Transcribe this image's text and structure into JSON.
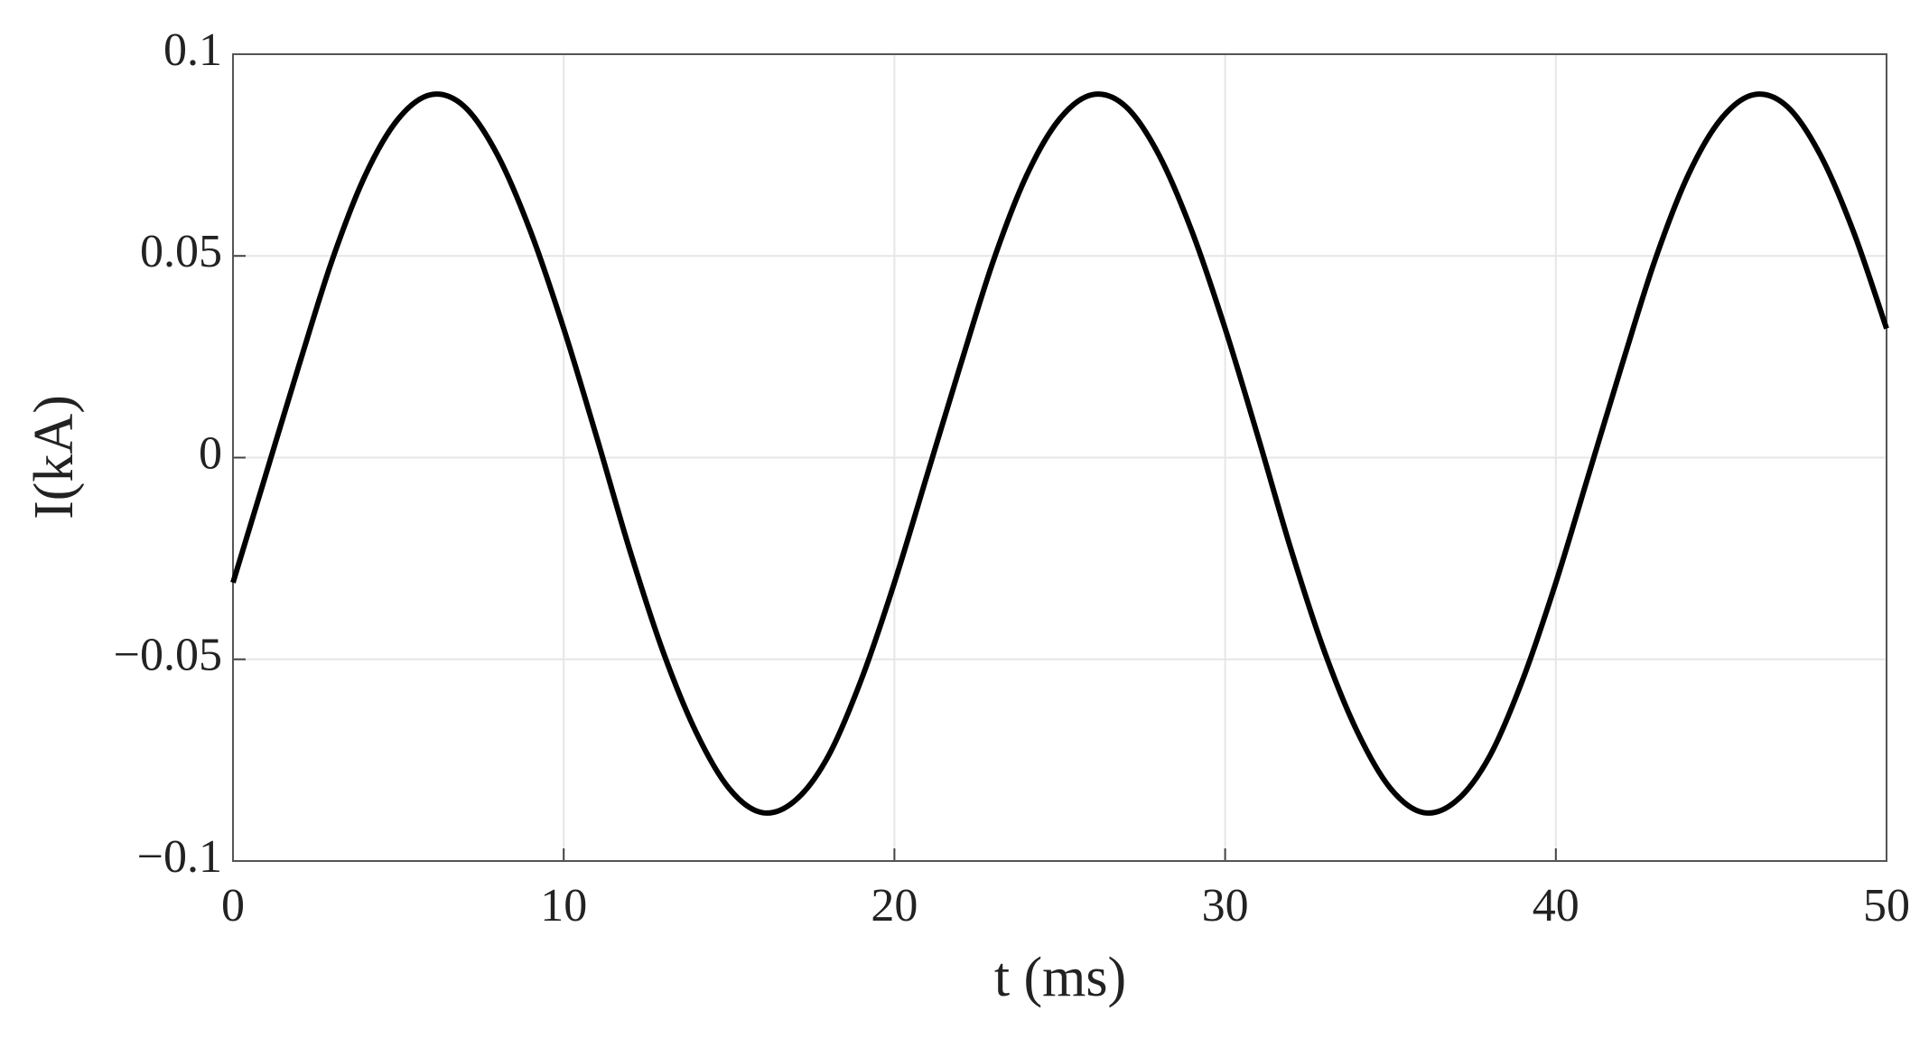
{
  "chart_data": {
    "type": "line",
    "xlabel": "t (ms)",
    "ylabel": "I(kA)",
    "x": [
      0,
      1,
      2,
      3,
      4,
      5,
      6,
      7,
      8,
      9,
      10,
      11,
      12,
      13,
      14,
      15,
      16,
      17,
      18,
      19,
      20,
      21,
      22,
      23,
      24,
      25,
      26,
      27,
      28,
      29,
      30,
      31,
      32,
      33,
      34,
      35,
      36,
      37,
      38,
      39,
      40,
      41,
      42,
      43,
      44,
      45,
      46,
      47,
      48,
      49,
      50
    ],
    "series": [
      {
        "name": "I",
        "color": "#000000",
        "values": [
          -0.031,
          -0.004,
          0.023,
          0.049,
          0.07,
          0.084,
          0.09,
          0.087,
          0.075,
          0.056,
          0.032,
          0.005,
          -0.023,
          -0.048,
          -0.068,
          -0.082,
          -0.088,
          -0.085,
          -0.074,
          -0.055,
          -0.031,
          -0.004,
          0.023,
          0.049,
          0.07,
          0.084,
          0.09,
          0.087,
          0.075,
          0.056,
          0.032,
          0.005,
          -0.023,
          -0.048,
          -0.068,
          -0.082,
          -0.088,
          -0.085,
          -0.074,
          -0.055,
          -0.031,
          -0.004,
          0.023,
          0.049,
          0.07,
          0.084,
          0.09,
          0.087,
          0.075,
          0.056,
          0.032
        ]
      }
    ],
    "xlim": [
      0,
      50
    ],
    "xticks": [
      0,
      10,
      20,
      30,
      40,
      50
    ],
    "ylim": [
      -0.1,
      0.1
    ],
    "yticks": [
      {
        "value": -0.1,
        "label": "−0.1"
      },
      {
        "value": -0.05,
        "label": "−0.05"
      },
      0,
      0.05,
      0.1
    ],
    "grid": true
  }
}
